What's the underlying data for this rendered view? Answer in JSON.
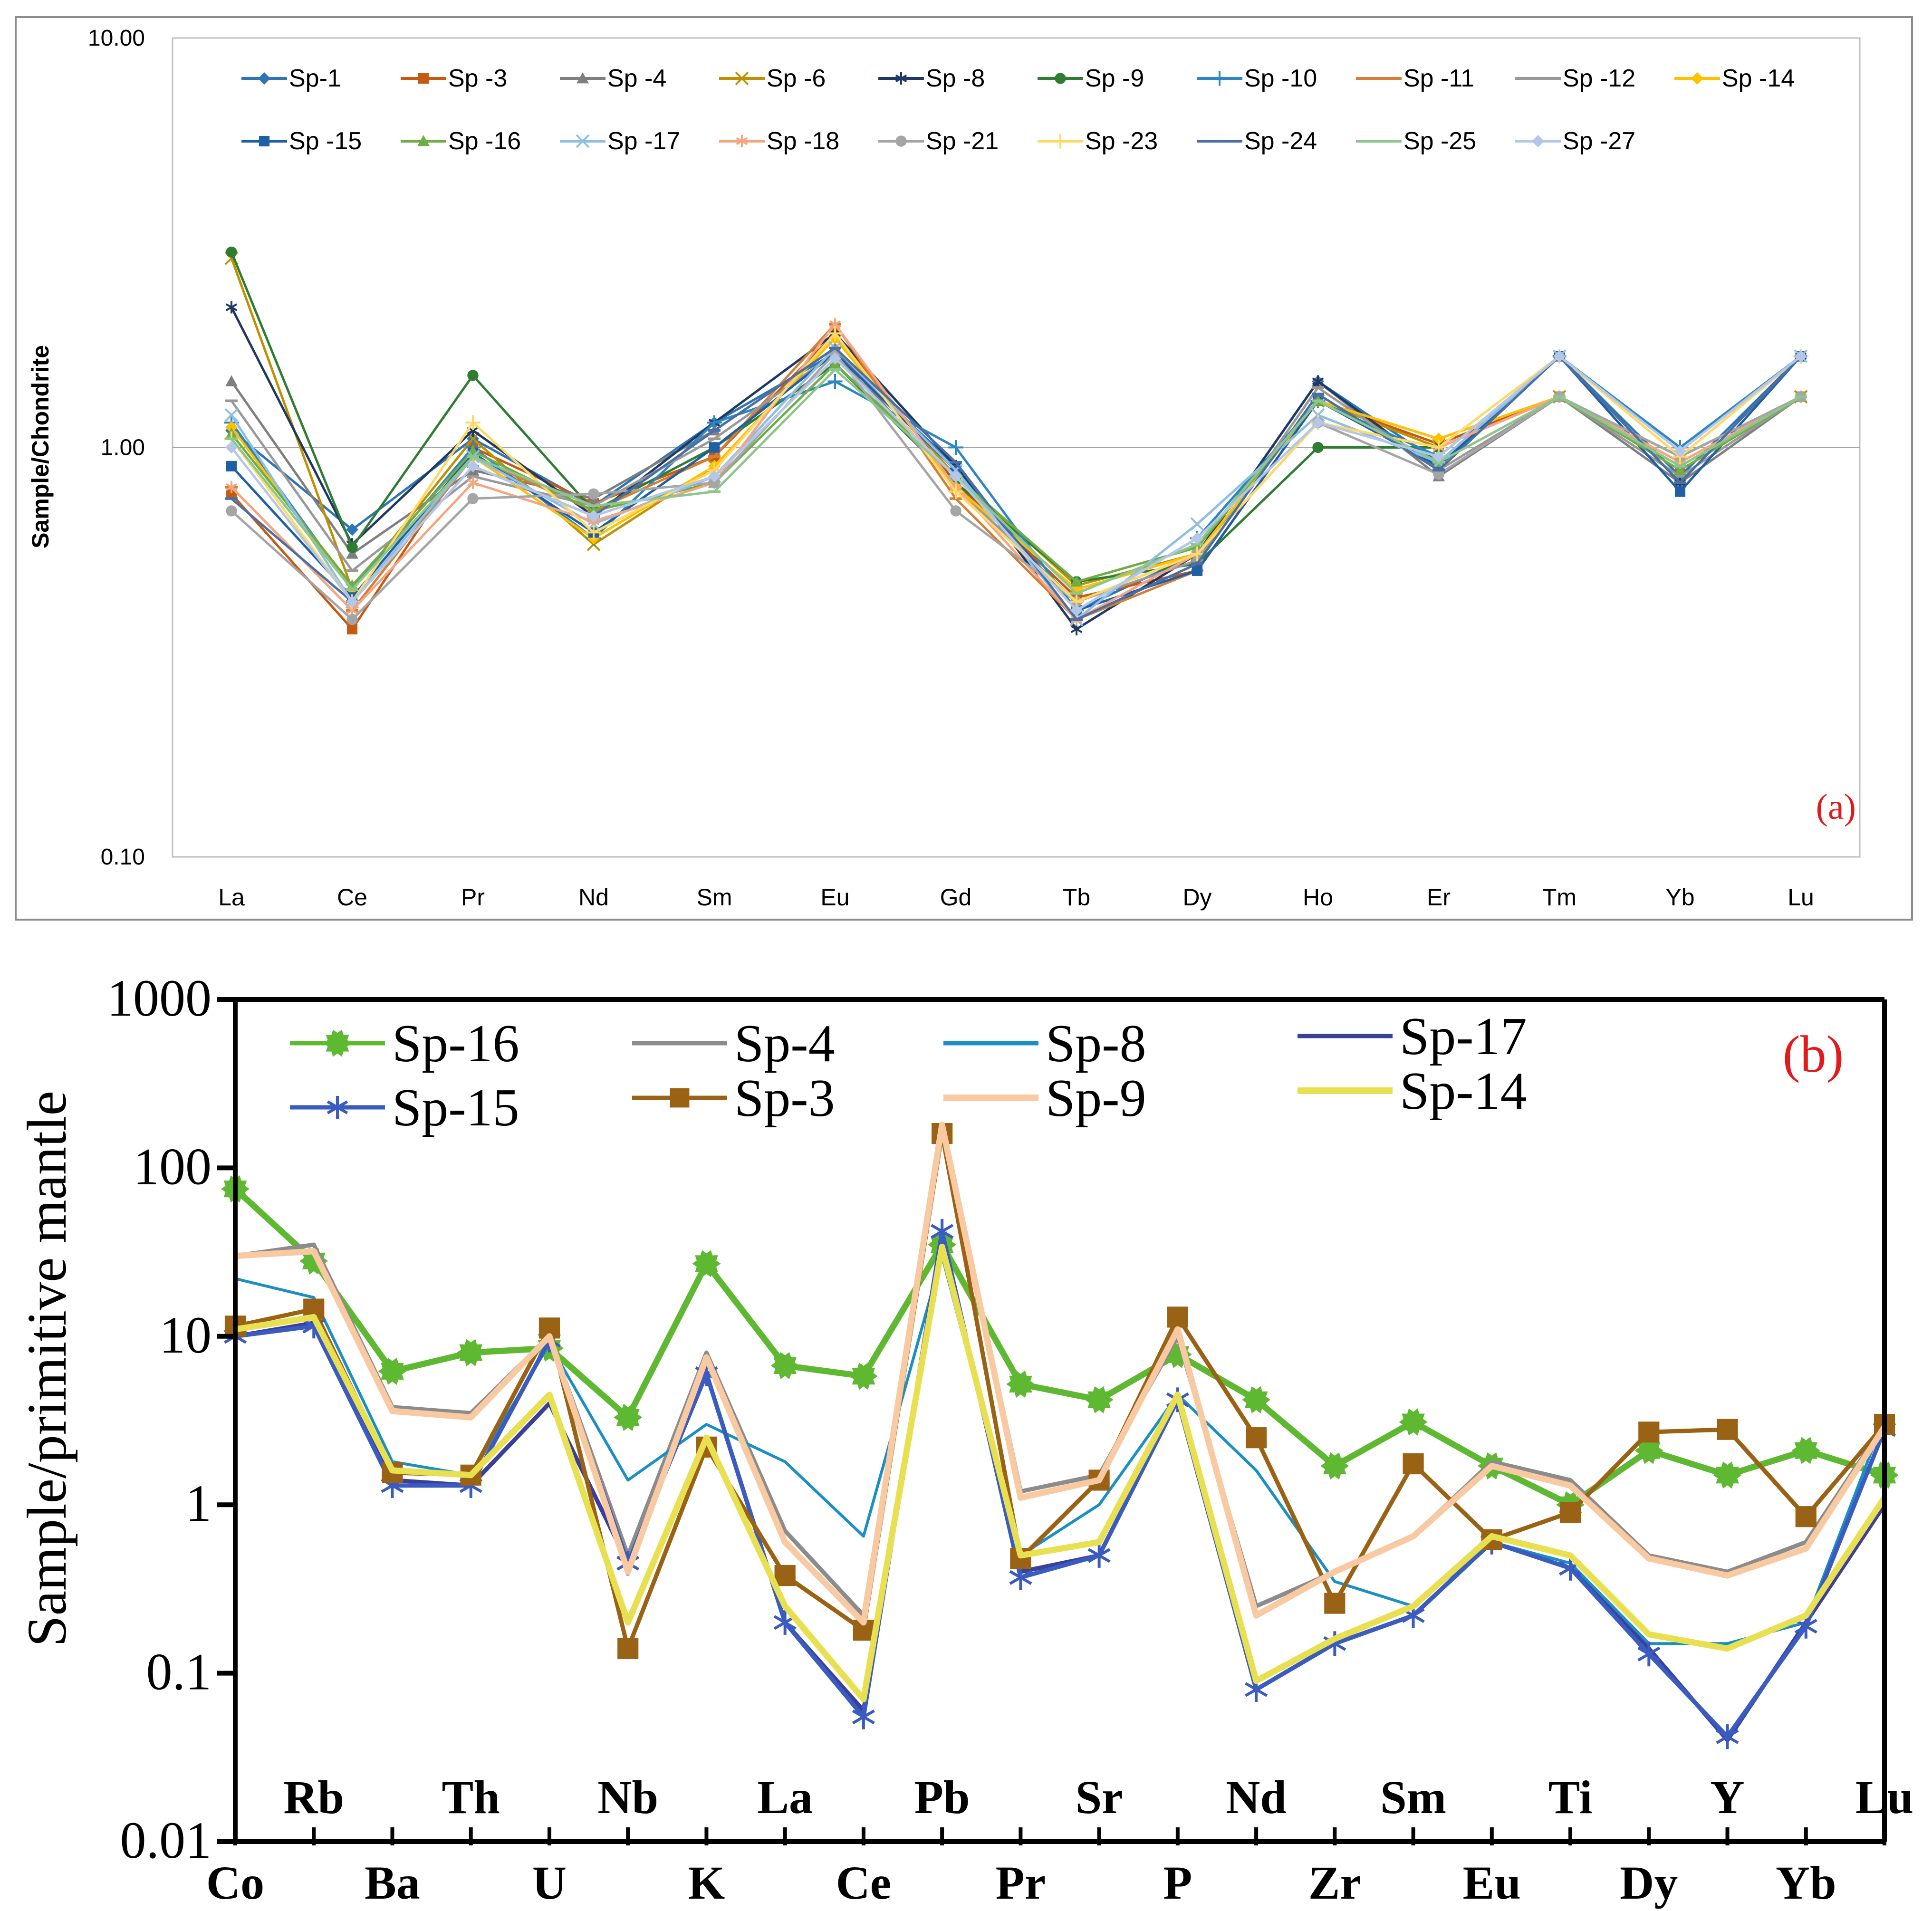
{
  "chart_data": [
    {
      "type": "line",
      "panel_label": "(a)",
      "title": "",
      "xlabel": "",
      "ylabel": "Sample/Chondrite",
      "yscale": "log",
      "ylim": [
        0.1,
        10
      ],
      "ytick_labels": [
        "10.00",
        "1.00",
        "0.10"
      ],
      "ytick_values": [
        10,
        1,
        0.1
      ],
      "reference_line": 1,
      "categories": [
        "La",
        "Ce",
        "Pr",
        "Nd",
        "Sm",
        "Eu",
        "Gd",
        "Tb",
        "Dy",
        "Ho",
        "Er",
        "Tm",
        "Yb",
        "Lu"
      ],
      "legend_position": "top",
      "grid": false,
      "series": [
        {
          "name": "Sp-1",
          "color": "#2e75b6",
          "marker": "diamond",
          "values": [
            1.1,
            0.63,
            1.05,
            0.72,
            1.15,
            1.7,
            0.9,
            0.4,
            0.55,
            1.45,
            0.92,
            1.67,
            0.85,
            1.67
          ]
        },
        {
          "name": "Sp -3",
          "color": "#c55a11",
          "marker": "square",
          "values": [
            0.77,
            0.36,
            1.0,
            0.73,
            0.95,
            1.9,
            0.82,
            0.43,
            0.5,
            1.3,
            1.02,
            1.33,
            0.9,
            1.33
          ]
        },
        {
          "name": "Sp -4",
          "color": "#7f7f7f",
          "marker": "triangle",
          "values": [
            1.45,
            0.55,
            0.88,
            0.75,
            1.1,
            1.75,
            0.8,
            0.45,
            0.55,
            1.45,
            0.85,
            1.33,
            0.82,
            1.33
          ]
        },
        {
          "name": "Sp -6",
          "color": "#bf9000",
          "marker": "x",
          "values": [
            2.9,
            0.45,
            1.05,
            0.58,
            0.9,
            1.85,
            0.85,
            0.46,
            0.55,
            1.3,
            1.0,
            1.33,
            0.95,
            1.33
          ]
        },
        {
          "name": "Sp -8",
          "color": "#203864",
          "marker": "star",
          "values": [
            2.2,
            0.58,
            1.1,
            0.68,
            1.15,
            1.9,
            0.9,
            0.36,
            0.55,
            1.45,
            0.88,
            1.67,
            0.82,
            1.67
          ]
        },
        {
          "name": "Sp -9",
          "color": "#2f7d32",
          "marker": "circle",
          "values": [
            3.0,
            0.57,
            1.5,
            0.7,
            1.0,
            1.6,
            0.82,
            0.47,
            0.52,
            1.0,
            1.0,
            1.33,
            0.95,
            1.33
          ]
        },
        {
          "name": "Sp -10",
          "color": "#2e86c1",
          "marker": "plus",
          "values": [
            1.15,
            0.45,
            1.0,
            0.6,
            1.15,
            1.45,
            1.0,
            0.4,
            0.6,
            1.3,
            0.95,
            1.67,
            1.0,
            1.67
          ]
        },
        {
          "name": "Sp -11",
          "color": "#d67e35",
          "marker": "dash",
          "values": [
            0.8,
            0.4,
            0.95,
            0.7,
            0.95,
            2.0,
            0.75,
            0.38,
            0.5,
            1.3,
            1.05,
            1.33,
            0.9,
            1.33
          ]
        },
        {
          "name": "Sp -12",
          "color": "#999999",
          "marker": "dash",
          "values": [
            1.3,
            0.5,
            0.85,
            0.72,
            1.05,
            1.7,
            0.8,
            0.42,
            0.53,
            1.4,
            0.88,
            1.33,
            0.85,
            1.33
          ]
        },
        {
          "name": "Sp -14",
          "color": "#ffc000",
          "marker": "diamond",
          "values": [
            1.12,
            0.45,
            0.95,
            0.6,
            0.9,
            1.85,
            0.8,
            0.45,
            0.55,
            1.3,
            1.05,
            1.33,
            0.92,
            1.33
          ]
        },
        {
          "name": "Sp -15",
          "color": "#1f5fa6",
          "marker": "square",
          "values": [
            0.9,
            0.43,
            0.97,
            0.62,
            1.0,
            1.7,
            0.88,
            0.4,
            0.5,
            1.3,
            0.9,
            1.67,
            0.78,
            1.67
          ]
        },
        {
          "name": "Sp -16",
          "color": "#70ad47",
          "marker": "triangle",
          "values": [
            1.08,
            0.46,
            0.98,
            0.7,
            0.82,
            1.6,
            0.85,
            0.47,
            0.57,
            1.3,
            0.92,
            1.33,
            0.88,
            1.33
          ]
        },
        {
          "name": "Sp -17",
          "color": "#8fbfe0",
          "marker": "x",
          "values": [
            1.2,
            0.42,
            0.95,
            0.65,
            0.85,
            1.75,
            0.88,
            0.38,
            0.65,
            1.2,
            0.92,
            1.67,
            0.95,
            1.67
          ]
        },
        {
          "name": "Sp -18",
          "color": "#f4a582",
          "marker": "star",
          "values": [
            0.8,
            0.4,
            0.82,
            0.66,
            0.82,
            2.0,
            0.8,
            0.38,
            0.55,
            1.15,
            1.0,
            1.33,
            0.92,
            1.33
          ]
        },
        {
          "name": "Sp -21",
          "color": "#a5a5a5",
          "marker": "circle",
          "values": [
            0.7,
            0.38,
            0.75,
            0.77,
            0.82,
            1.7,
            0.7,
            0.42,
            0.55,
            1.15,
            0.86,
            1.33,
            0.95,
            1.33
          ]
        },
        {
          "name": "Sp -23",
          "color": "#ffd966",
          "marker": "plus",
          "values": [
            1.05,
            0.42,
            1.15,
            0.62,
            0.88,
            1.9,
            0.78,
            0.42,
            0.55,
            1.15,
            1.0,
            1.67,
            0.95,
            1.67
          ]
        },
        {
          "name": "Sp -24",
          "color": "#4a6fa5",
          "marker": "dash",
          "values": [
            0.75,
            0.42,
            0.9,
            0.68,
            1.1,
            1.75,
            0.92,
            0.38,
            0.52,
            1.35,
            0.88,
            1.67,
            0.82,
            1.67
          ]
        },
        {
          "name": "Sp -25",
          "color": "#8cc68c",
          "marker": "dash",
          "values": [
            1.05,
            0.45,
            0.95,
            0.72,
            0.78,
            1.55,
            0.85,
            0.44,
            0.58,
            1.3,
            0.92,
            1.33,
            0.9,
            1.33
          ]
        },
        {
          "name": "Sp -27",
          "color": "#b4c7e7",
          "marker": "diamond",
          "values": [
            1.0,
            0.42,
            0.9,
            0.68,
            0.85,
            1.65,
            0.85,
            0.4,
            0.6,
            1.15,
            0.95,
            1.67,
            0.98,
            1.67
          ]
        }
      ]
    },
    {
      "type": "line",
      "panel_label": "(b)",
      "title": "",
      "xlabel": "",
      "ylabel": "Sample/primitive mantle",
      "yscale": "log",
      "ylim": [
        0.01,
        1000
      ],
      "ytick_labels": [
        "1000",
        "100",
        "10",
        "1",
        "0.1",
        "0.01"
      ],
      "ytick_values": [
        1000,
        100,
        10,
        1,
        0.1,
        0.01
      ],
      "categories": [
        "Co",
        "Rb",
        "Ba",
        "Th",
        "U",
        "Nb",
        "K",
        "La",
        "Ce",
        "Pb",
        "Pr",
        "Sr",
        "P",
        "Nd",
        "Zr",
        "Sm",
        "Eu",
        "Ti",
        "Dy",
        "Y",
        "Yb",
        "Lu"
      ],
      "legend_position": "top",
      "grid": false,
      "series": [
        {
          "name": "Sp-16",
          "color": "#5fb832",
          "marker": "gear",
          "values": [
            75,
            28,
            6.2,
            8,
            8.5,
            3.3,
            27,
            6.7,
            5.8,
            35,
            5.2,
            4.2,
            7.8,
            4.2,
            1.7,
            3.1,
            1.7,
            1.0,
            2.1,
            1.5,
            2.1,
            1.5
          ]
        },
        {
          "name": "Sp-4",
          "color": "#8c8c8c",
          "marker": "none",
          "values": [
            30,
            35,
            3.8,
            3.5,
            10,
            0.5,
            8,
            0.7,
            0.22,
            175,
            1.2,
            1.5,
            10,
            0.25,
            0.4,
            0.65,
            1.8,
            1.4,
            0.5,
            0.4,
            0.6,
            3.0
          ]
        },
        {
          "name": "Sp-8",
          "color": "#1a8fc4",
          "marker": "none",
          "values": [
            22,
            17,
            1.8,
            1.5,
            9,
            1.4,
            3,
            1.8,
            0.65,
            30,
            0.5,
            1.0,
            4.5,
            1.6,
            0.35,
            0.25,
            0.6,
            0.45,
            0.15,
            0.15,
            0.2,
            3.3
          ]
        },
        {
          "name": "Sp-17",
          "color": "#3b3f9c",
          "marker": "none",
          "values": [
            10,
            12,
            1.4,
            1.3,
            4,
            0.45,
            6,
            0.2,
            0.06,
            38,
            0.4,
            0.5,
            4.2,
            0.08,
            0.15,
            0.22,
            0.6,
            0.42,
            0.14,
            0.04,
            0.2,
            1.0
          ]
        },
        {
          "name": "Sp-15",
          "color": "#3a5bbf",
          "marker": "asterisk",
          "values": [
            10,
            11.5,
            1.3,
            1.3,
            9.5,
            0.45,
            6,
            0.2,
            0.055,
            42,
            0.37,
            0.5,
            4.2,
            0.08,
            0.15,
            0.22,
            0.6,
            0.42,
            0.13,
            0.042,
            0.19,
            2.8
          ]
        },
        {
          "name": "Sp-3",
          "color": "#9a6214",
          "marker": "square",
          "values": [
            11.5,
            14.5,
            1.55,
            1.5,
            11.2,
            0.14,
            2.2,
            0.38,
            0.18,
            160,
            0.48,
            1.4,
            13,
            2.5,
            0.26,
            1.75,
            0.62,
            0.9,
            2.7,
            2.8,
            0.85,
            3.0
          ]
        },
        {
          "name": "Sp-9",
          "color": "#f9c9a1",
          "marker": "none",
          "values": [
            30,
            32,
            3.6,
            3.3,
            10,
            0.4,
            7.5,
            0.6,
            0.2,
            180,
            1.1,
            1.4,
            11,
            0.22,
            0.4,
            0.65,
            1.7,
            1.3,
            0.48,
            0.38,
            0.55,
            2.9
          ]
        },
        {
          "name": "Sp-14",
          "color": "#e8e050",
          "marker": "none",
          "values": [
            11,
            13,
            1.6,
            1.5,
            4.5,
            0.2,
            2.5,
            0.25,
            0.07,
            34,
            0.5,
            0.6,
            4.5,
            0.09,
            0.16,
            0.25,
            0.65,
            0.5,
            0.17,
            0.14,
            0.22,
            1.1
          ]
        }
      ]
    }
  ]
}
